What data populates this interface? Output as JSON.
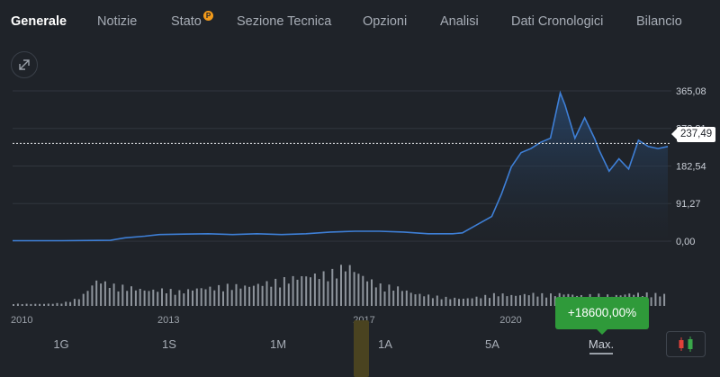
{
  "tabs": [
    {
      "label": "Generale",
      "active": true
    },
    {
      "label": "Notizie"
    },
    {
      "label": "Stato",
      "badge": "P"
    },
    {
      "label": "Sezione Tecnica"
    },
    {
      "label": "Opzioni"
    },
    {
      "label": "Analisi"
    },
    {
      "label": "Dati Cronologici"
    },
    {
      "label": "Bilancio"
    }
  ],
  "icons": {
    "expand": "expand-arrows-icon",
    "chart_type": "candlestick-icon",
    "badge": "premium-badge-icon"
  },
  "colors": {
    "line": "#3e7fd6",
    "up": "#2f9a3a",
    "candle_red": "#e2413a",
    "candle_green": "#3aa84a",
    "badge": "#f29a1a"
  },
  "price": {
    "current": "237,49"
  },
  "performance": {
    "label": "+18600,00%"
  },
  "ranges": [
    "1G",
    "1S",
    "1M",
    "1A",
    "5A",
    "Max."
  ],
  "active_range": "Max.",
  "chart_data": {
    "type": "line",
    "y_ticks": [
      "365,08",
      "273,81",
      "182,54",
      "91,27",
      "0,00"
    ],
    "x_ticks": [
      "2010",
      "2013",
      "2017",
      "2020"
    ],
    "ylim": [
      0,
      400
    ],
    "x": [
      2010,
      2011,
      2012,
      2012.3,
      2012.7,
      2013,
      2013.5,
      2014,
      2014.5,
      2015,
      2015.5,
      2016,
      2016.5,
      2017,
      2017.5,
      2018,
      2018.5,
      2019,
      2019.2,
      2019.5,
      2019.8,
      2020,
      2020.2,
      2020.4,
      2020.6,
      2020.8,
      2021,
      2021.2,
      2021.3,
      2021.5,
      2021.7,
      2021.9,
      2022,
      2022.2,
      2022.4,
      2022.6,
      2022.8,
      2023,
      2023.2,
      2023.4
    ],
    "y": [
      1,
      1,
      2,
      8,
      12,
      16,
      17,
      18,
      16,
      18,
      16,
      18,
      22,
      24,
      24,
      22,
      18,
      18,
      20,
      40,
      60,
      115,
      180,
      215,
      225,
      240,
      250,
      360,
      330,
      250,
      300,
      250,
      220,
      170,
      200,
      175,
      245,
      230,
      225,
      230
    ],
    "volume": [
      2,
      2,
      2,
      3,
      8,
      25,
      20,
      18,
      15,
      16,
      14,
      17,
      18,
      20,
      19,
      22,
      25,
      28,
      30,
      32,
      40,
      28,
      20,
      18,
      12,
      10,
      8,
      7,
      9,
      12,
      10,
      12,
      11,
      12,
      10,
      11,
      10,
      12,
      12,
      11
    ]
  }
}
